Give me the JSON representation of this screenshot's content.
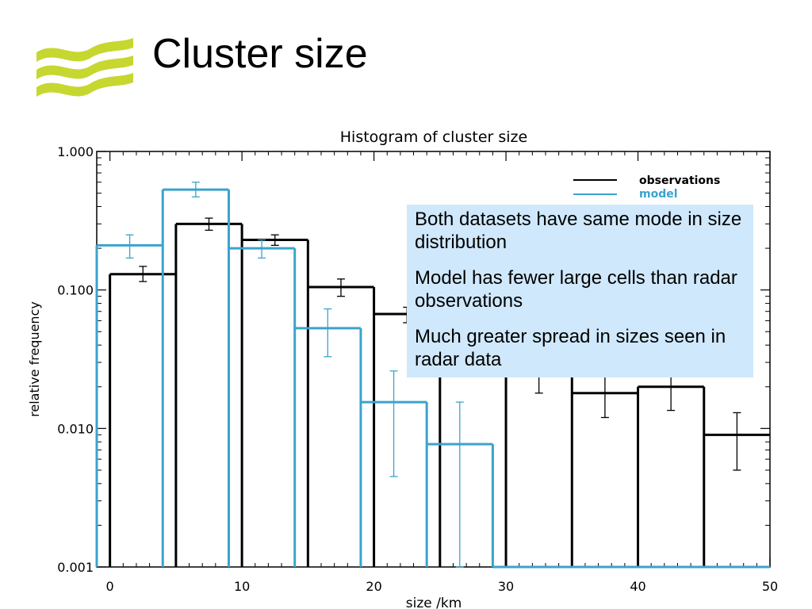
{
  "slide": {
    "title": "Cluster size",
    "logo_color": "#c6d72f"
  },
  "note": {
    "items": [
      "Both datasets have same mode in size distribution",
      "Model has fewer large cells than radar observations",
      "Much greater spread in sizes seen in radar data"
    ]
  },
  "chart_data": {
    "type": "bar",
    "style": "step histogram with error bars",
    "title": "Histogram of cluster size",
    "xlabel": "size /km",
    "ylabel": "relative frequency",
    "xlim": [
      -1,
      50
    ],
    "ylim": [
      0.001,
      1.0
    ],
    "yscale": "log",
    "xticks": [
      0,
      10,
      20,
      30,
      40,
      50
    ],
    "xtick_labels": [
      "0",
      "10",
      "20",
      "30",
      "40",
      "50"
    ],
    "yticks": [
      0.001,
      0.01,
      0.1,
      1.0
    ],
    "ytick_labels": [
      "0.001",
      "0.010",
      "0.100",
      "1.000"
    ],
    "legend_position": "top-right",
    "series": [
      {
        "name": "observations",
        "color": "#000000",
        "bin_edges": [
          0,
          5,
          10,
          15,
          20,
          25,
          30,
          35,
          40,
          45,
          50
        ],
        "values": [
          0.13,
          0.3,
          0.23,
          0.105,
          0.067,
          0.042,
          0.025,
          0.018,
          0.02,
          0.009
        ],
        "err_low": [
          0.115,
          0.27,
          0.21,
          0.09,
          0.058,
          0.035,
          0.018,
          0.012,
          0.0135,
          0.005
        ],
        "err_high": [
          0.148,
          0.33,
          0.25,
          0.12,
          0.075,
          0.05,
          0.033,
          0.026,
          0.028,
          0.013
        ]
      },
      {
        "name": "model",
        "color": "#3ba3cc",
        "bin_edges": [
          -1,
          4,
          9,
          14,
          19,
          24,
          29,
          34,
          39,
          44,
          49,
          50
        ],
        "values": [
          0.21,
          0.53,
          0.2,
          0.053,
          0.0155,
          0.0077,
          0.001,
          0.001,
          0.001,
          0.001,
          0.001
        ],
        "error_bars": [
          {
            "x": 1.5,
            "low": 0.17,
            "high": 0.25
          },
          {
            "x": 6.5,
            "low": 0.47,
            "high": 0.6
          },
          {
            "x": 11.5,
            "low": 0.17,
            "high": 0.23
          },
          {
            "x": 16.5,
            "low": 0.033,
            "high": 0.073
          },
          {
            "x": 21.5,
            "low": 0.0045,
            "high": 0.026
          },
          {
            "x": 26.5,
            "low": 0.001,
            "high": 0.0155
          }
        ]
      }
    ]
  }
}
